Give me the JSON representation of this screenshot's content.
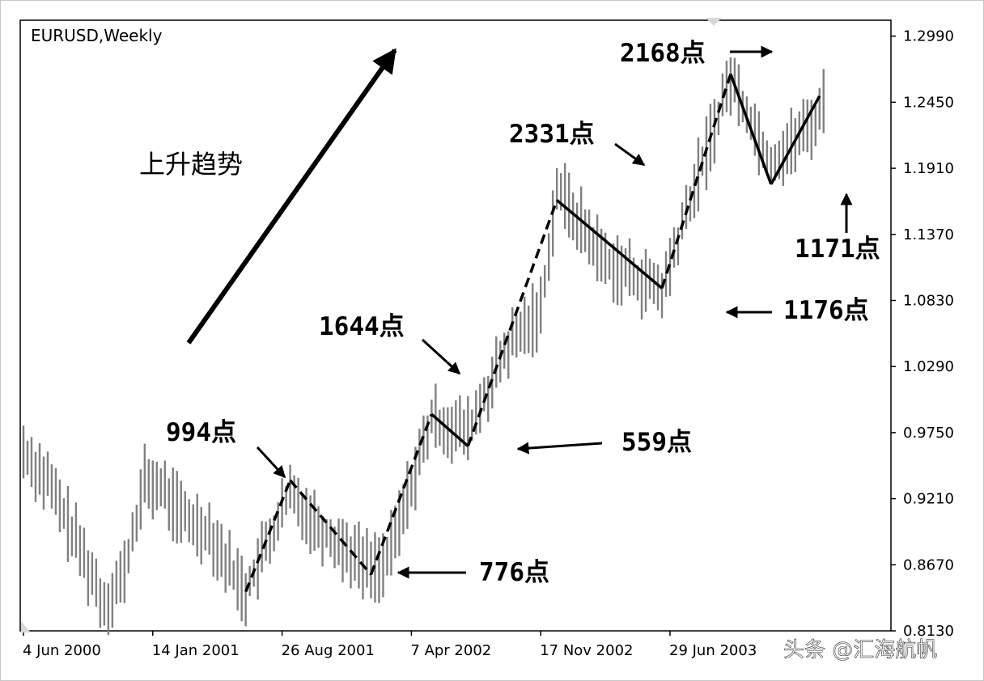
{
  "chart_data": {
    "type": "bar",
    "title": "EURUSD,Weekly",
    "symbol_label": "EURUSD,Weekly",
    "trend_label": "上升趋势",
    "watermark": "头条 @汇海航帆",
    "ylim": [
      0.813,
      1.312
    ],
    "y_ticks": [
      "1.2990",
      "1.2450",
      "1.1910",
      "1.1370",
      "1.0830",
      "1.0290",
      "0.9750",
      "0.9210",
      "0.8670",
      "0.8130"
    ],
    "x_ticks": [
      "4 Jun 2000",
      "14 Jan 2001",
      "26 Aug 2001",
      "7 Apr 2002",
      "17 Nov 2002",
      "29 Jun 2003"
    ],
    "grid": false,
    "legend": "none",
    "bar_color": "#808080",
    "annotations": [
      {
        "text": "994点"
      },
      {
        "text": "776点"
      },
      {
        "text": "1644点"
      },
      {
        "text": "559点"
      },
      {
        "text": "2331点"
      },
      {
        "text": "1176点"
      },
      {
        "text": "2168点"
      },
      {
        "text": "1171点"
      }
    ],
    "swing_points": [
      {
        "date": "2001-06-24",
        "price": 0.845
      },
      {
        "date": "2001-09-09",
        "price": 0.936
      },
      {
        "date": "2002-01-27",
        "price": 0.859
      },
      {
        "date": "2002-05-12",
        "price": 0.99
      },
      {
        "date": "2002-07-14",
        "price": 0.964
      },
      {
        "date": "2002-12-15",
        "price": 1.165
      },
      {
        "date": "2003-06-15",
        "price": 1.093
      },
      {
        "date": "2003-10-12",
        "price": 1.268
      },
      {
        "date": "2003-12-21",
        "price": 1.178
      },
      {
        "date": "2004-03-14",
        "price": 1.25
      }
    ]
  }
}
